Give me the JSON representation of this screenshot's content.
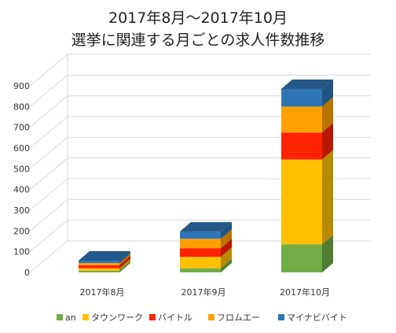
{
  "chart_data": {
    "type": "bar",
    "title_line1": "2017年8月〜2017年10月",
    "title_line2": "選挙に関連する月ごとの求人件数推移",
    "categories": [
      "2017年8月",
      "2017年9月",
      "2017年10月"
    ],
    "series": [
      {
        "name": "an",
        "color": "#70ad47",
        "values": [
          8,
          20,
          135
        ]
      },
      {
        "name": "タウンワーク",
        "color": "#ffc000",
        "values": [
          12,
          55,
          410
        ]
      },
      {
        "name": "バイトル",
        "color": "#ff2200",
        "values": [
          15,
          42,
          130
        ]
      },
      {
        "name": "フロムエー",
        "color": "#ffa000",
        "values": [
          10,
          45,
          125
        ]
      },
      {
        "name": "マイナビバイト",
        "color": "#2e75b6",
        "values": [
          12,
          35,
          85
        ]
      }
    ],
    "ylim": [
      0,
      900
    ],
    "yticks": [
      "0",
      "100",
      "200",
      "300",
      "400",
      "500",
      "600",
      "700",
      "800",
      "900"
    ],
    "grid": true,
    "legend": "bottom"
  }
}
